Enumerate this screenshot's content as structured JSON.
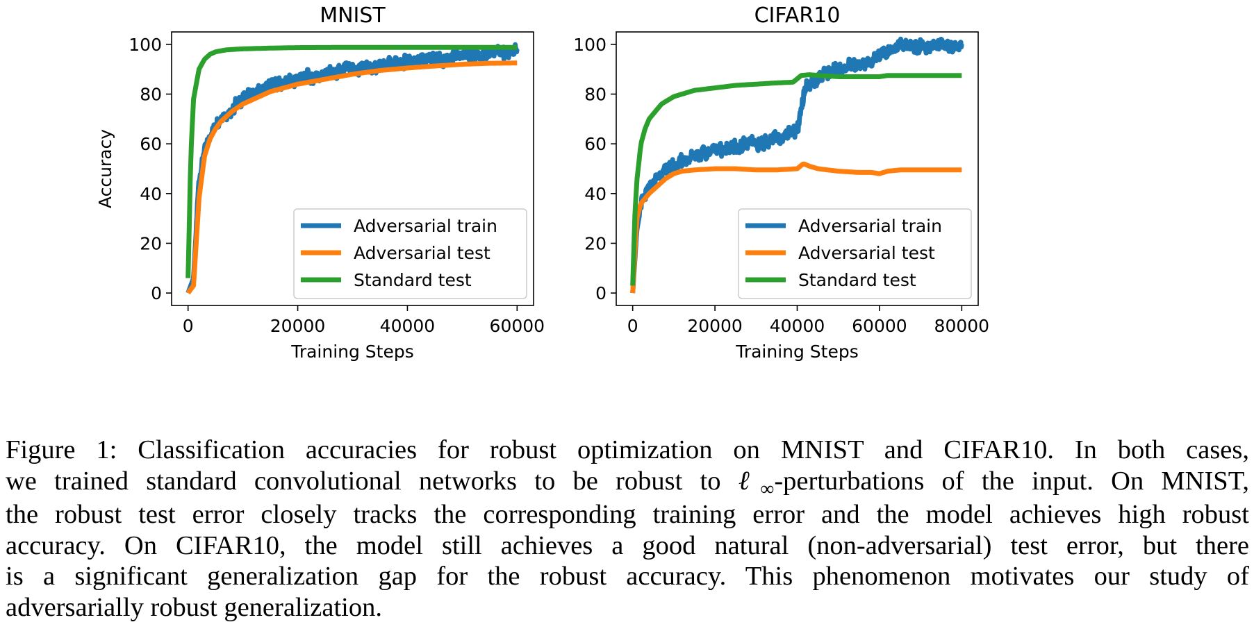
{
  "chart_data": [
    {
      "type": "line",
      "title": "MNIST",
      "xlabel": "Training Steps",
      "ylabel": "Accuracy",
      "xlim": [
        -3000,
        63000
      ],
      "ylim": [
        -5,
        105
      ],
      "xticks": [
        "0",
        "20000",
        "40000",
        "60000"
      ],
      "xtick_values": [
        0,
        20000,
        40000,
        60000
      ],
      "yticks": [
        "0",
        "20",
        "40",
        "60",
        "80",
        "100"
      ],
      "ytick_values": [
        0,
        20,
        40,
        60,
        80,
        100
      ],
      "grid": false,
      "legend_position": "lower-right",
      "series": [
        {
          "name": "Adversarial train",
          "color": "#1f77b4",
          "noisy": true,
          "x": [
            0,
            1000,
            2000,
            3000,
            4000,
            5000,
            6000,
            8000,
            10000,
            12000,
            15000,
            20000,
            25000,
            30000,
            35000,
            40000,
            45000,
            50000,
            55000,
            60000
          ],
          "y": [
            0,
            6,
            45,
            57,
            63,
            67,
            70,
            74,
            78,
            80,
            83,
            86,
            88,
            90,
            91,
            93,
            94,
            95,
            96,
            97
          ]
        },
        {
          "name": "Adversarial test",
          "color": "#ff7f0e",
          "noisy": false,
          "x": [
            0,
            1000,
            2000,
            3000,
            4000,
            5000,
            6000,
            8000,
            10000,
            12000,
            15000,
            20000,
            25000,
            30000,
            35000,
            40000,
            45000,
            50000,
            55000,
            60000
          ],
          "y": [
            0,
            3,
            38,
            55,
            62,
            66,
            69,
            73,
            76,
            78,
            81,
            84,
            86,
            88,
            89.5,
            90.5,
            91.3,
            92,
            92.4,
            92.5
          ]
        },
        {
          "name": "Standard test",
          "color": "#2ca02c",
          "noisy": false,
          "x": [
            0,
            500,
            1000,
            2000,
            3000,
            4000,
            5000,
            7000,
            10000,
            15000,
            20000,
            30000,
            40000,
            50000,
            60000
          ],
          "y": [
            6,
            55,
            78,
            90,
            94,
            96,
            97,
            97.8,
            98.2,
            98.5,
            98.7,
            98.8,
            98.8,
            98.8,
            98.8
          ]
        }
      ]
    },
    {
      "type": "line",
      "title": "CIFAR10",
      "xlabel": "Training Steps",
      "ylabel": "",
      "xlim": [
        -4000,
        84000
      ],
      "ylim": [
        -5,
        105
      ],
      "xticks": [
        "0",
        "20000",
        "40000",
        "60000",
        "80000"
      ],
      "xtick_values": [
        0,
        20000,
        40000,
        60000,
        80000
      ],
      "yticks": [
        "0",
        "20",
        "40",
        "60",
        "80",
        "100"
      ],
      "ytick_values": [
        0,
        20,
        40,
        60,
        80,
        100
      ],
      "grid": false,
      "legend_position": "lower-right",
      "series": [
        {
          "name": "Adversarial train",
          "color": "#1f77b4",
          "noisy": true,
          "x": [
            0,
            1000,
            2000,
            4000,
            6000,
            8000,
            10000,
            12000,
            15000,
            20000,
            25000,
            30000,
            35000,
            38000,
            40000,
            41000,
            42000,
            44000,
            46000,
            50000,
            55000,
            58000,
            60000,
            62000,
            65000,
            70000,
            75000,
            80000
          ],
          "y": [
            0,
            25,
            35,
            42,
            46,
            49,
            52,
            53,
            55,
            57,
            59,
            60,
            62,
            64,
            65,
            76,
            83,
            85,
            87,
            90,
            92,
            93,
            95,
            98,
            99,
            99,
            99,
            99
          ]
        },
        {
          "name": "Adversarial test",
          "color": "#ff7f0e",
          "noisy": false,
          "x": [
            0,
            1000,
            2000,
            4000,
            6000,
            8000,
            10000,
            12000,
            15000,
            20000,
            25000,
            30000,
            35000,
            40000,
            41500,
            43000,
            45000,
            50000,
            55000,
            58000,
            60000,
            62000,
            65000,
            70000,
            75000,
            80000
          ],
          "y": [
            0,
            30,
            36,
            40,
            43,
            46,
            48,
            49,
            49.5,
            50,
            50,
            49.5,
            49.5,
            50,
            52,
            51,
            50,
            49,
            48.5,
            48.5,
            48,
            49,
            49.5,
            49.5,
            49.5,
            49.5
          ]
        },
        {
          "name": "Standard test",
          "color": "#2ca02c",
          "noisy": false,
          "x": [
            0,
            500,
            1000,
            2000,
            3000,
            4000,
            5000,
            7000,
            10000,
            15000,
            20000,
            25000,
            30000,
            35000,
            39000,
            41000,
            43000,
            45000,
            50000,
            55000,
            60000,
            62000,
            65000,
            70000,
            75000,
            80000
          ],
          "y": [
            3,
            30,
            45,
            60,
            66,
            70,
            72,
            76,
            79,
            81.5,
            82.5,
            83.5,
            84,
            84.5,
            84.8,
            87.5,
            87.8,
            87.5,
            87,
            87,
            87,
            87.5,
            87.5,
            87.5,
            87.5,
            87.5
          ]
        }
      ]
    }
  ],
  "caption": {
    "lines": [
      "Figure 1: Classification accuracies for robust optimization on MNIST and CIFAR10. In both cases,",
      "we trained standard convolutional networks to be robust to ",
      "-perturbations of the input. On MNIST,",
      "the robust test error closely tracks the corresponding training error and the model achieves high robust",
      "accuracy. On CIFAR10, the model still achieves a good natural (non-adversarial) test error, but there",
      "is a significant generalization gap for the robust accuracy. This phenomenon motivates our study of",
      "adversarially robust generalization."
    ],
    "math_symbol": "ℓ",
    "math_subscript": "∞"
  }
}
